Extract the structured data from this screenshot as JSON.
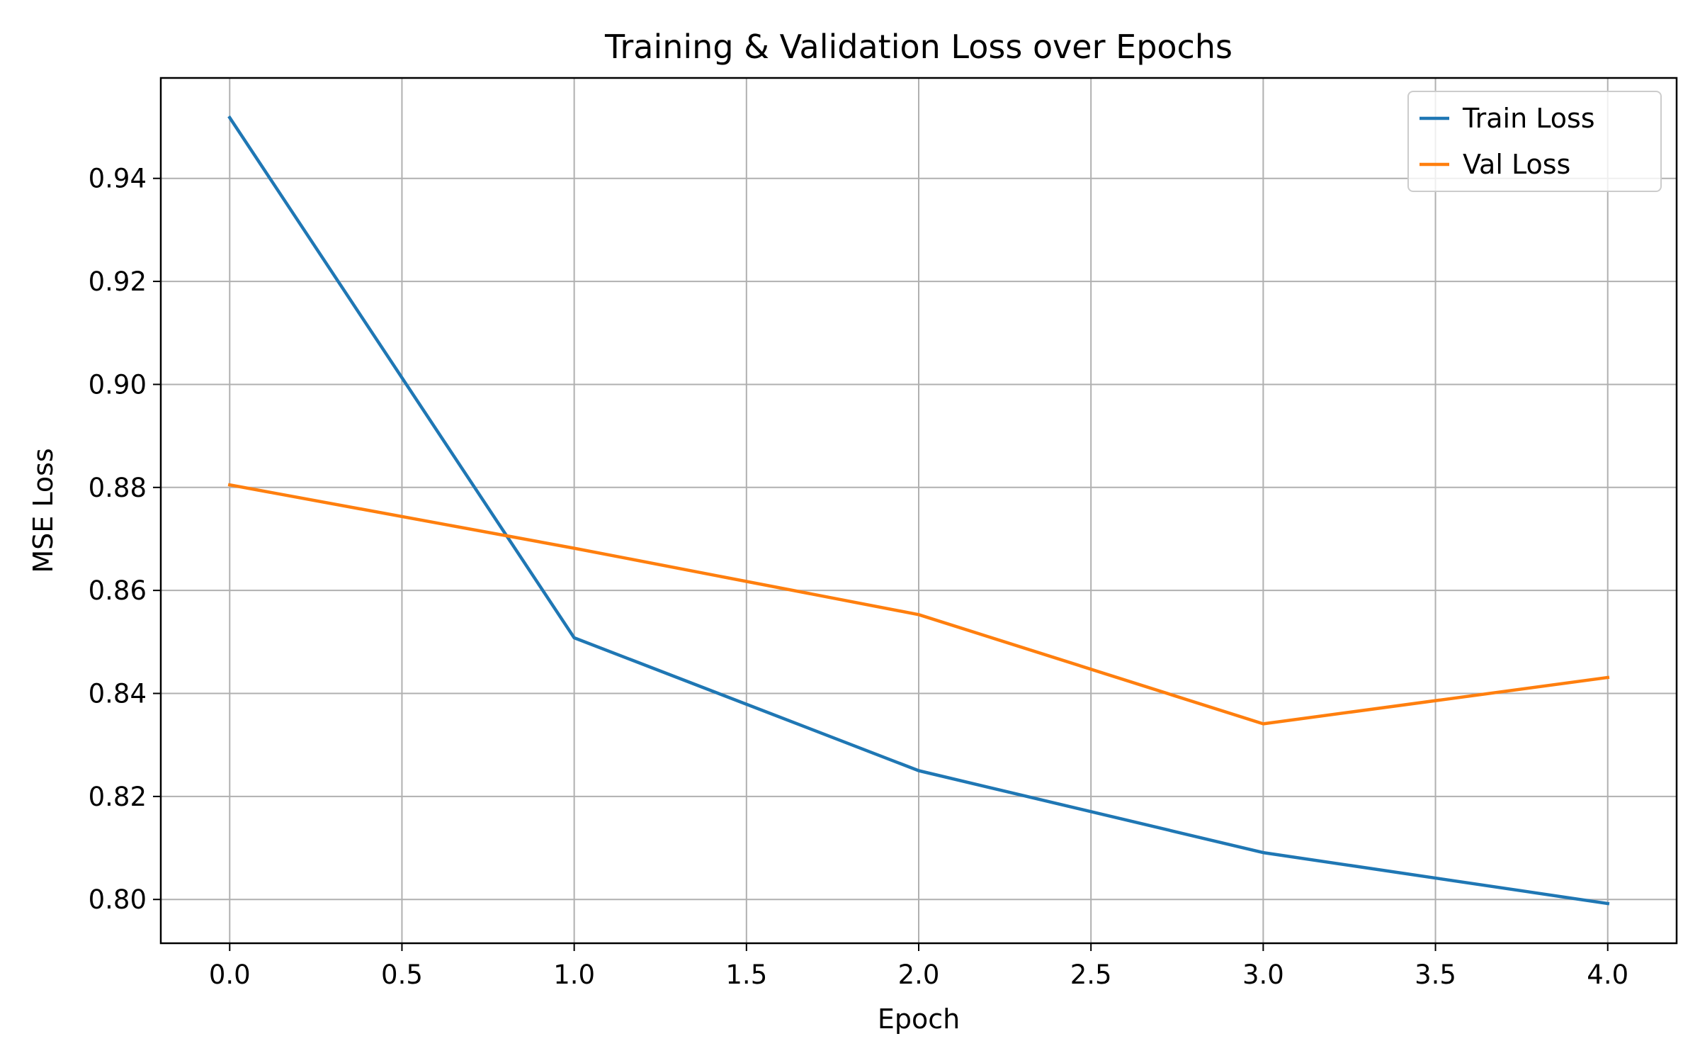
{
  "chart_data": {
    "type": "line",
    "title": "Training & Validation Loss over Epochs",
    "xlabel": "Epoch",
    "ylabel": "MSE Loss",
    "xlim": [
      -0.2,
      4.2
    ],
    "ylim": [
      0.7915,
      0.9595
    ],
    "x_ticks": [
      0.0,
      0.5,
      1.0,
      1.5,
      2.0,
      2.5,
      3.0,
      3.5,
      4.0
    ],
    "x_tick_labels": [
      "0.0",
      "0.5",
      "1.0",
      "1.5",
      "2.0",
      "2.5",
      "3.0",
      "3.5",
      "4.0"
    ],
    "y_ticks": [
      0.8,
      0.82,
      0.84,
      0.86,
      0.88,
      0.9,
      0.92,
      0.94
    ],
    "y_tick_labels": [
      "0.80",
      "0.82",
      "0.84",
      "0.86",
      "0.88",
      "0.90",
      "0.92",
      "0.94"
    ],
    "grid": true,
    "legend_position": "top-right",
    "x": [
      0,
      1,
      2,
      3,
      4
    ],
    "series": [
      {
        "name": "Train Loss",
        "color": "#1f77b4",
        "values": [
          0.9518,
          0.8508,
          0.825,
          0.8091,
          0.7992
        ]
      },
      {
        "name": "Val Loss",
        "color": "#ff7f0e",
        "values": [
          0.8805,
          0.8682,
          0.8553,
          0.8341,
          0.8431
        ]
      }
    ]
  }
}
